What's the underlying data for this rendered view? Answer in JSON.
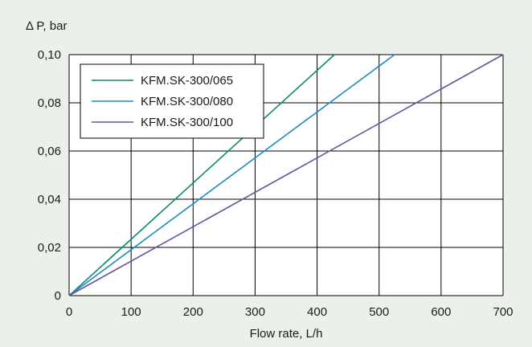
{
  "colors": {
    "background": "#ecf0eb",
    "plot_background": "#ffffff",
    "grid": "#000000",
    "series_065": "#0a8a6a",
    "series_080": "#1b8ac4",
    "series_100": "#6b4f9c"
  },
  "chart_data": {
    "type": "line",
    "title": "",
    "ylabel": "Δ P, bar",
    "xlabel": "Flow rate, L/h",
    "xlim": [
      0,
      700
    ],
    "ylim": [
      0,
      0.1
    ],
    "x_ticks": [
      "0",
      "100",
      "200",
      "300",
      "400",
      "500",
      "600",
      "700"
    ],
    "y_ticks": [
      "0",
      "0,02",
      "0,04",
      "0,06",
      "0,08",
      "0,10"
    ],
    "grid": true,
    "legend_position": "top-left",
    "series": [
      {
        "name": "KFM.SK-300/065",
        "color": "#0a8a6a",
        "points": [
          [
            0,
            0
          ],
          [
            428,
            0.1
          ]
        ]
      },
      {
        "name": "KFM.SK-300/080",
        "color": "#1b8ac4",
        "points": [
          [
            0,
            0
          ],
          [
            525,
            0.1
          ]
        ]
      },
      {
        "name": "KFM.SK-300/100",
        "color": "#6b4f9c",
        "points": [
          [
            0,
            0
          ],
          [
            700,
            0.1
          ]
        ]
      }
    ]
  }
}
